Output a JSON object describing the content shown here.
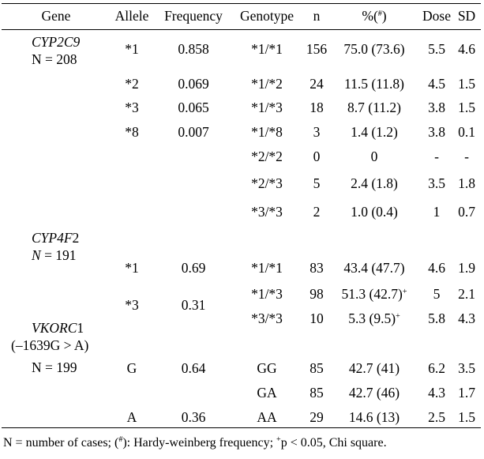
{
  "headers": {
    "gene": "Gene",
    "allele": "Allele",
    "frequency": "Frequency",
    "genotype": "Genotype",
    "n": "n",
    "pct_prefix": "%(",
    "pct_sup": "#",
    "pct_suffix": ")",
    "dose": "Dose",
    "sd": "SD"
  },
  "genes": [
    {
      "name_italic": "CYP2C9",
      "name_plain": "",
      "sub_label": "N = 208",
      "sub_italic_n": false
    },
    {
      "name_italic": "CYP4F",
      "name_plain": "2",
      "sub_label": "= 191",
      "sub_italic_n": true,
      "sub_n": "N"
    },
    {
      "name_italic": "VKORC",
      "name_plain": "1",
      "sub_label": "(–1639G > A)",
      "sub_italic_n": false,
      "sub_label2": "N = 199"
    }
  ],
  "alleles": [
    {
      "allele": "*1",
      "frequency": "0.858"
    },
    {
      "allele": "*2",
      "frequency": "0.069"
    },
    {
      "allele": "*3",
      "frequency": "0.065"
    },
    {
      "allele": "*8",
      "frequency": "0.007"
    },
    {
      "allele": "*1",
      "frequency": "0.69"
    },
    {
      "allele": "*3",
      "frequency": "0.31"
    },
    {
      "allele": "G",
      "frequency": "0.64"
    },
    {
      "allele": "A",
      "frequency": "0.36"
    }
  ],
  "genotypes": [
    {
      "genotype": "*1/*1",
      "n": "156",
      "pct": "75.0 (73.6)",
      "sup": "",
      "dose": "5.5",
      "sd": "4.6"
    },
    {
      "genotype": "*1/*2",
      "n": "24",
      "pct": "11.5 (11.8)",
      "sup": "",
      "dose": "4.5",
      "sd": "1.5"
    },
    {
      "genotype": "*1/*3",
      "n": "18",
      "pct": "8.7 (11.2)",
      "sup": "",
      "dose": "3.8",
      "sd": "1.5"
    },
    {
      "genotype": "*1/*8",
      "n": "3",
      "pct": "1.4 (1.2)",
      "sup": "",
      "dose": "3.8",
      "sd": "0.1"
    },
    {
      "genotype": "*2/*2",
      "n": "0",
      "pct": "0",
      "sup": "",
      "dose": "-",
      "sd": "-"
    },
    {
      "genotype": "*2/*3",
      "n": "5",
      "pct": "2.4 (1.8)",
      "sup": "",
      "dose": "3.5",
      "sd": "1.8"
    },
    {
      "genotype": "*3/*3",
      "n": "2",
      "pct": "1.0 (0.4)",
      "sup": "",
      "dose": "1",
      "sd": "0.7"
    },
    {
      "genotype": "*1/*1",
      "n": "83",
      "pct": "43.4 (47.7)",
      "sup": "",
      "dose": "4.6",
      "sd": "1.9"
    },
    {
      "genotype": "*1/*3",
      "n": "98",
      "pct": "51.3 (42.7)",
      "sup": "+",
      "dose": "5",
      "sd": "2.1"
    },
    {
      "genotype": "*3/*3",
      "n": "10",
      "pct": "5.3 (9.5)",
      "sup": "+",
      "dose": "5.8",
      "sd": "4.3"
    },
    {
      "genotype": "GG",
      "n": "85",
      "pct": "42.7 (41)",
      "sup": "",
      "dose": "6.2",
      "sd": "3.5"
    },
    {
      "genotype": "GA",
      "n": "85",
      "pct": "42.7 (46)",
      "sup": "",
      "dose": "4.3",
      "sd": "1.7"
    },
    {
      "genotype": "AA",
      "n": "29",
      "pct": "14.6 (13)",
      "sup": "",
      "dose": "2.5",
      "sd": "1.5"
    }
  ],
  "footnote": {
    "part1": "N = number of cases; (",
    "sup1": "#",
    "part2": "): Hardy-weinberg frequency; ",
    "sup2": "+",
    "part3": "p < 0.05, Chi square."
  }
}
